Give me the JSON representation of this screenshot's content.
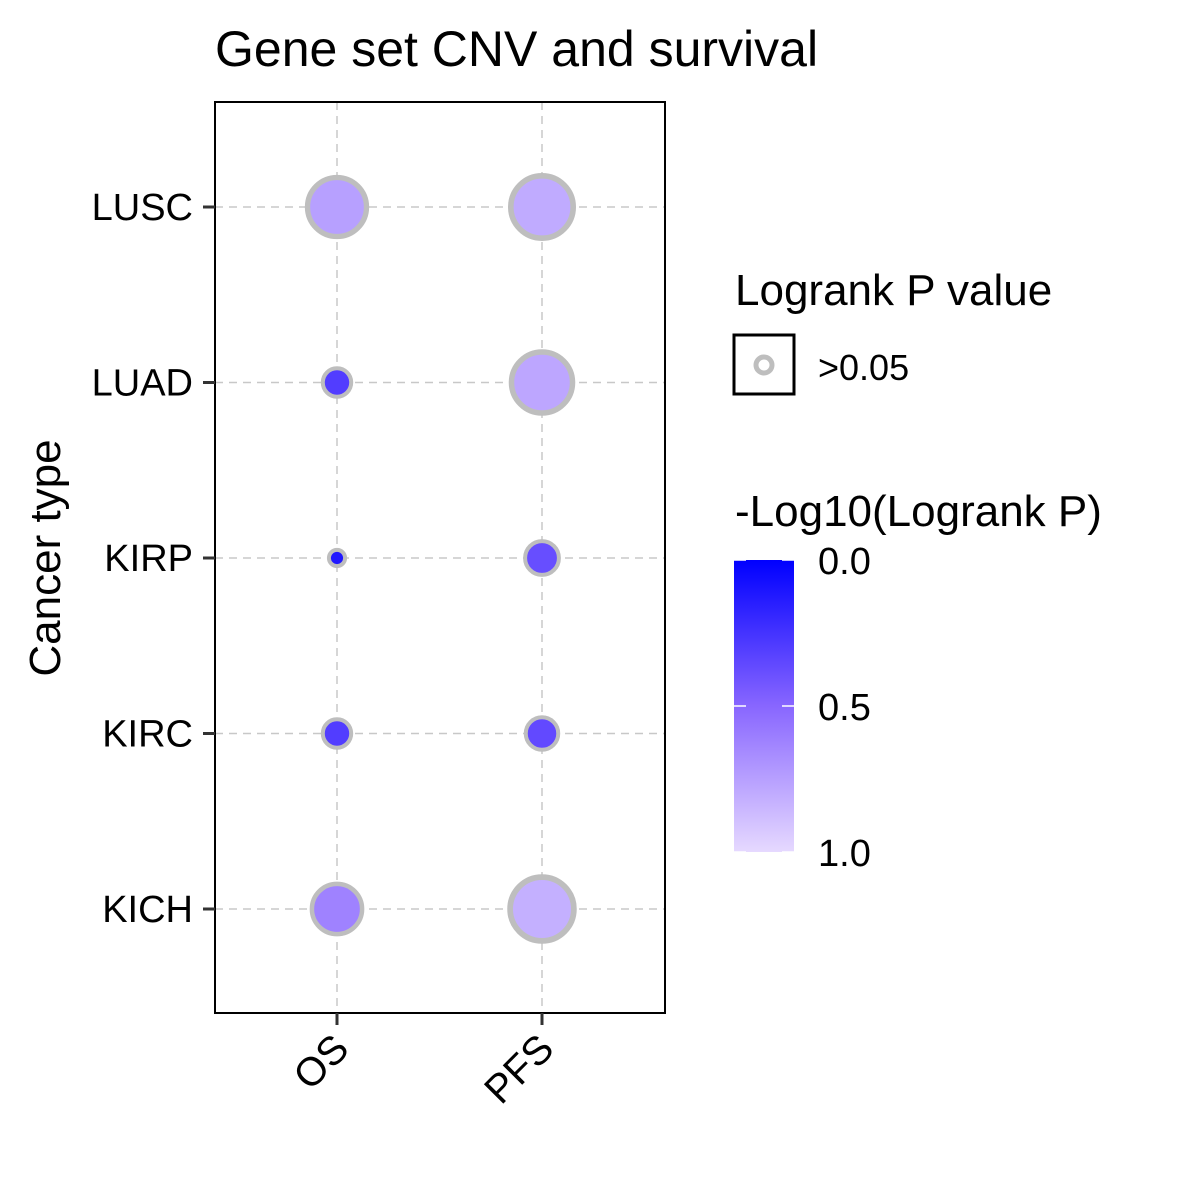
{
  "chart_data": {
    "type": "scatter",
    "title": "Gene set CNV and survival",
    "xlabel": "",
    "ylabel": "Cancer type",
    "categories_x": [
      "OS",
      "PFS"
    ],
    "categories_y": [
      "LUSC",
      "LUAD",
      "KIRP",
      "KIRC",
      "KICH"
    ],
    "points": [
      {
        "x": "OS",
        "y": "LUSC",
        "neglog10p": 0.75,
        "significant": false
      },
      {
        "x": "PFS",
        "y": "LUSC",
        "neglog10p": 0.8,
        "significant": false
      },
      {
        "x": "OS",
        "y": "LUAD",
        "neglog10p": 0.3,
        "significant": false
      },
      {
        "x": "PFS",
        "y": "LUAD",
        "neglog10p": 0.78,
        "significant": false
      },
      {
        "x": "OS",
        "y": "KIRP",
        "neglog10p": 0.12,
        "significant": false
      },
      {
        "x": "PFS",
        "y": "KIRP",
        "neglog10p": 0.38,
        "significant": false
      },
      {
        "x": "OS",
        "y": "KIRC",
        "neglog10p": 0.3,
        "significant": false
      },
      {
        "x": "PFS",
        "y": "KIRC",
        "neglog10p": 0.36,
        "significant": false
      },
      {
        "x": "OS",
        "y": "KICH",
        "neglog10p": 0.62,
        "significant": false
      },
      {
        "x": "PFS",
        "y": "KICH",
        "neglog10p": 0.82,
        "significant": false
      }
    ],
    "legend": {
      "size_title": "Logrank P value",
      "size_label": ">0.05",
      "color_title": "-Log10(Logrank P)",
      "color_ticks": [
        "0.0",
        "0.5",
        "1.0"
      ],
      "color_range": [
        0,
        1
      ],
      "color_low": "#0000ff",
      "color_high": "#e6d9ff",
      "position": "right"
    },
    "grid": true,
    "colors": {
      "outline": "#bebebe",
      "grid": "#c8c8c8",
      "axis": "#000000"
    }
  }
}
